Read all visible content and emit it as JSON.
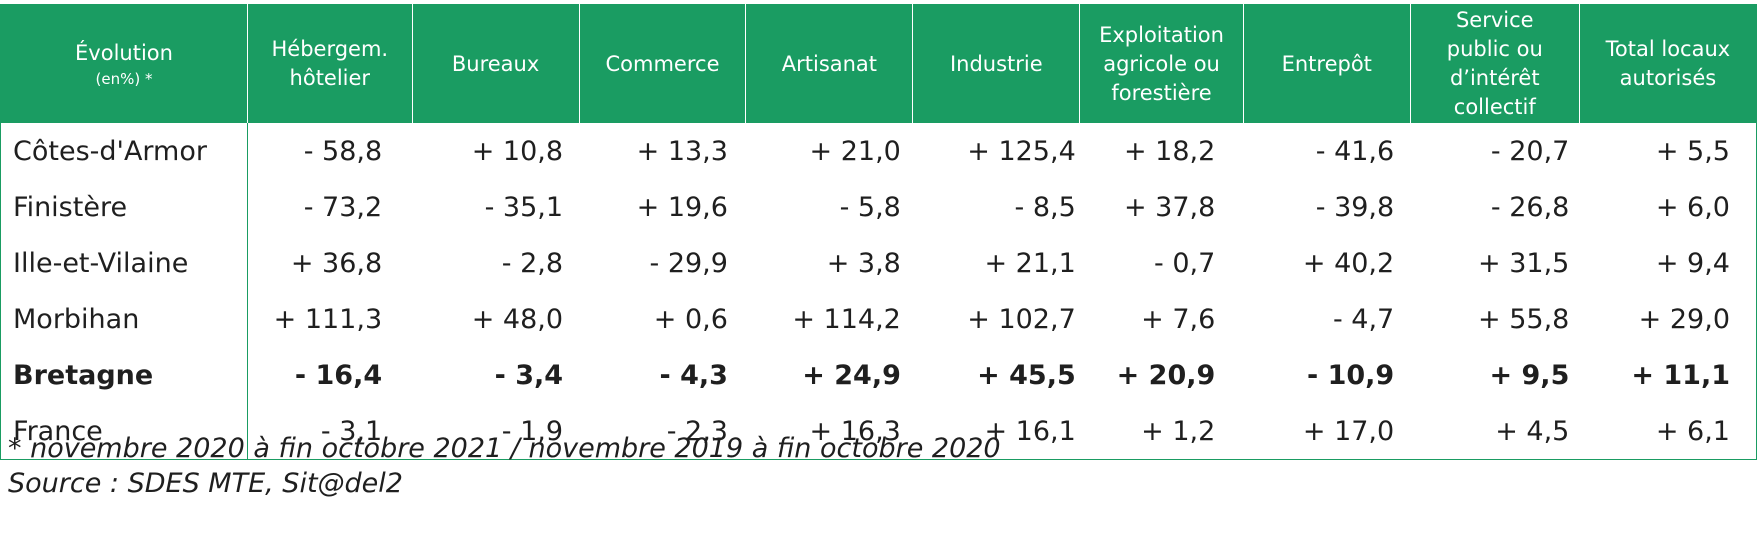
{
  "table": {
    "corner_title": "Évolution",
    "corner_subtitle": "(en%) *",
    "columns": [
      "Hébergem.\nhôtelier",
      "Bureaux",
      "Commerce",
      "Artisanat",
      "Industrie",
      "Exploitation\nagricole ou\nforestière",
      "Entrepôt",
      "Service\npublic ou\nd’intérêt\ncollectif",
      "Total locaux\nautorisés"
    ],
    "rows": [
      {
        "label": "Côtes-d'Armor",
        "bold": false,
        "values": [
          "- 58,8",
          "+ 10,8",
          "+ 13,3",
          "+ 21,0",
          "+ 125,4",
          "+ 18,2",
          "- 41,6",
          "- 20,7",
          "+ 5,5"
        ]
      },
      {
        "label": "Finistère",
        "bold": false,
        "values": [
          "- 73,2",
          "- 35,1",
          "+ 19,6",
          "- 5,8",
          "- 8,5",
          "+ 37,8",
          "- 39,8",
          "- 26,8",
          "+ 6,0"
        ]
      },
      {
        "label": "Ille-et-Vilaine",
        "bold": false,
        "values": [
          "+ 36,8",
          "- 2,8",
          "- 29,9",
          "+ 3,8",
          "+ 21,1",
          "- 0,7",
          "+ 40,2",
          "+ 31,5",
          "+ 9,4"
        ]
      },
      {
        "label": "Morbihan",
        "bold": false,
        "values": [
          "+ 111,3",
          "+ 48,0",
          "+ 0,6",
          "+ 114,2",
          "+ 102,7",
          "+ 7,6",
          "- 4,7",
          "+ 55,8",
          "+ 29,0"
        ]
      },
      {
        "label": "Bretagne",
        "bold": true,
        "values": [
          "- 16,4",
          "- 3,4",
          "- 4,3",
          "+ 24,9",
          "+ 45,5",
          "+ 20,9",
          "- 10,9",
          "+ 9,5",
          "+ 11,1"
        ]
      },
      {
        "label": "France",
        "bold": false,
        "values": [
          "- 3,1",
          "- 1,9",
          "- 2,3",
          "+ 16,3",
          "+ 16,1",
          "+ 1,2",
          "+ 17,0",
          "+ 4,5",
          "+ 6,1"
        ]
      }
    ]
  },
  "footnote": "* novembre 2020 à fin octobre 2021 / novembre 2019 à fin octobre 2020",
  "source": "Source : SDES MTE, Sit@del2",
  "colors": {
    "header_bg": "#1a9c62",
    "header_text": "#ffffff",
    "body_text": "#1f1f1f"
  }
}
